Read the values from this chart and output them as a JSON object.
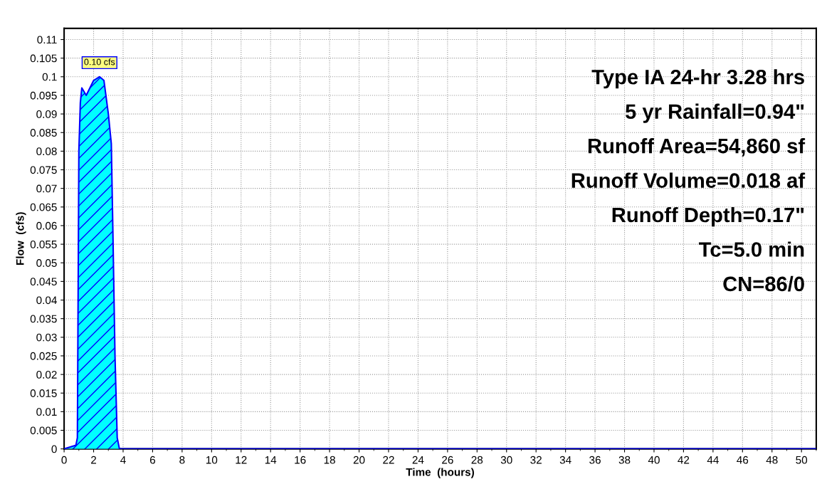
{
  "chart_data": {
    "type": "area",
    "xlabel": "Time  (hours)",
    "ylabel": "Flow  (cfs)",
    "x": [
      0,
      0.8,
      0.9,
      1.0,
      1.1,
      1.2,
      1.5,
      2.0,
      2.4,
      2.7,
      3.0,
      3.2,
      3.3,
      3.45,
      3.6,
      3.75,
      4,
      10,
      20,
      30,
      40,
      50,
      51
    ],
    "series": [
      {
        "color": "#00ffff",
        "values": [
          0,
          0.001,
          0.003,
          0.08,
          0.093,
          0.097,
          0.095,
          0.099,
          0.1,
          0.099,
          0.09,
          0.082,
          0.06,
          0.025,
          0.003,
          0,
          0,
          0,
          0,
          0,
          0,
          0,
          0
        ]
      }
    ],
    "xlim": [
      0,
      51
    ],
    "ylim": [
      0,
      0.113
    ],
    "xticks": [
      0,
      2,
      4,
      6,
      8,
      10,
      12,
      14,
      16,
      18,
      20,
      22,
      24,
      26,
      28,
      30,
      32,
      34,
      36,
      38,
      40,
      42,
      44,
      46,
      48,
      50
    ],
    "yticks": [
      0,
      0.005,
      0.01,
      0.015,
      0.02,
      0.025,
      0.03,
      0.035,
      0.04,
      0.045,
      0.05,
      0.055,
      0.06,
      0.065,
      0.07,
      0.075,
      0.08,
      0.085,
      0.09,
      0.095,
      0.1,
      0.105,
      0.11
    ],
    "grid": true,
    "annotations": [
      {
        "text": "0.10 cfs",
        "x": 2.4,
        "y": 0.1
      },
      "Type IA 24-hr 3.28 hrs",
      "5 yr Rainfall=0.94\"",
      "Runoff Area=54,860 sf",
      "Runoff Volume=0.018 af",
      "Runoff Depth=0.17\"",
      "Tc=5.0 min",
      "CN=86/0"
    ]
  }
}
